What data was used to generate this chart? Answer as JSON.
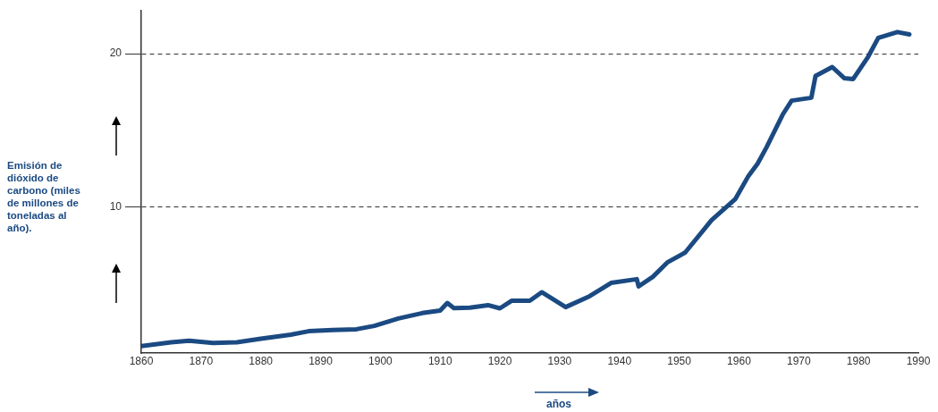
{
  "chart_data": {
    "type": "line",
    "xlabel": "años",
    "ylabel": "Emisión de dióxido de carbono (miles de millones de toneladas al año).",
    "x": [
      1860,
      1865,
      1868,
      1872,
      1876,
      1880,
      1885,
      1888,
      1892,
      1896,
      1899,
      1903,
      1907,
      1910,
      1911.2,
      1912.3,
      1915,
      1918,
      1920,
      1922,
      1925,
      1927,
      1931,
      1935,
      1938.6,
      1942.9,
      1943.2,
      1945.6,
      1948,
      1951,
      1955.4,
      1959.4,
      1961.6,
      1963.1,
      1964.6,
      1967.3,
      1968.8,
      1972.1,
      1972.8,
      1975.6,
      1977.6,
      1979.1,
      1981.6,
      1983.3,
      1986.5,
      1988.5
    ],
    "series": [
      {
        "color": "#1b4a82",
        "values": [
          0.95,
          1.2,
          1.3,
          1.16,
          1.2,
          1.43,
          1.69,
          1.92,
          2.0,
          2.05,
          2.27,
          2.75,
          3.1,
          3.27,
          3.76,
          3.43,
          3.45,
          3.62,
          3.41,
          3.91,
          3.91,
          4.46,
          3.49,
          4.2,
          5.07,
          5.31,
          4.84,
          5.47,
          6.4,
          7.05,
          9.15,
          10.54,
          12.05,
          12.83,
          13.9,
          16.03,
          16.94,
          17.13,
          18.55,
          19.13,
          18.41,
          18.35,
          19.8,
          21.03,
          21.41,
          21.26
        ]
      }
    ],
    "xlim": [
      1860,
      1990
    ],
    "xticks": [
      1860,
      1870,
      1880,
      1890,
      1900,
      1910,
      1920,
      1930,
      1940,
      1950,
      1960,
      1970,
      1980,
      1990
    ],
    "ylim": [
      0.5,
      22.8
    ],
    "yticks": [
      10,
      20
    ],
    "grid": "y"
  }
}
